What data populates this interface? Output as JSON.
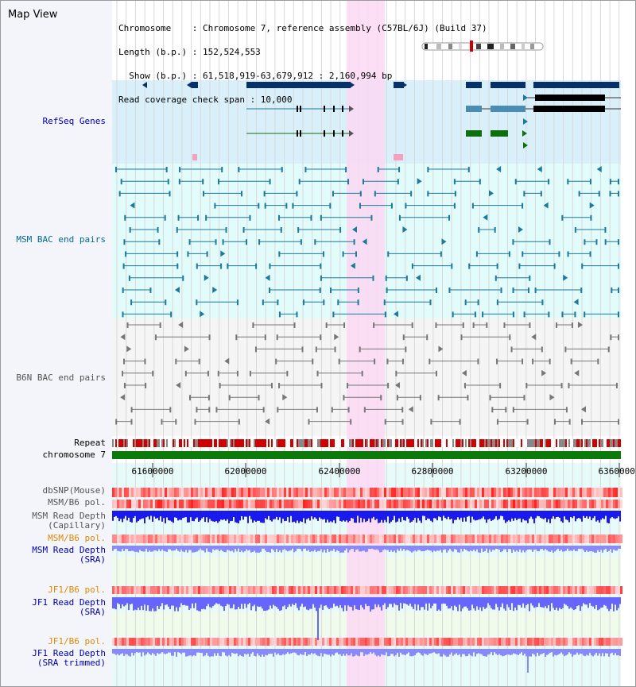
{
  "header": {
    "title": "Map View",
    "info_lines": [
      "Chromosome    : Chromosome 7, reference assembly (C57BL/6J) (Build 37)",
      "Length (b.p.) : 152,524,553",
      "  Show (b.p.) : 61,518,919-63,679,912 : 2,160,994 bp",
      "Read coverage check span : 10,000"
    ]
  },
  "tracks": {
    "refseq": "RefSeq Genes",
    "msm_bac": "MSM BAC end pairs",
    "b6n_bac": "B6N BAC end pairs",
    "repeat": "Repeat",
    "chromosome": "chromosome 7",
    "dbsnp": "dbSNP(Mouse)",
    "msm_pol": "MSM/B6 pol.",
    "msm_depth_cap_1": "MSM Read Depth",
    "msm_depth_cap_2": "(Capillary)",
    "msm_pol_sra": "MSM/B6 pol.",
    "msm_depth_sra_1": "MSM Read Depth",
    "msm_depth_sra_2": "(SRA)",
    "jf1_pol": "JF1/B6 pol.",
    "jf1_depth_1": "JF1 Read Depth",
    "jf1_depth_2": "(SRA)",
    "jf1_pol_trim": "JF1/B6 pol.",
    "jf1_trim_1": "JF1 Read Depth",
    "jf1_trim_2": "(SRA trimmed)"
  },
  "axis": {
    "ticks": [
      "61600000",
      "62000000",
      "62400000",
      "62800000",
      "63200000",
      "63600000"
    ]
  },
  "colors": {
    "refseq_bg": "#d9f0fb",
    "msm_bg": "#e2fbfb",
    "b6n_bg": "#f5f5f5",
    "highlight": "#fbd8f3",
    "gene_dark": "#06316b",
    "gene_mid": "#4a8db4",
    "gene_green": "#0d700d",
    "msm_feature": "#1d7a9c",
    "b6n_feature": "#777777",
    "chromosome": "#0b7a0b",
    "depth_blue": "#1a1aee",
    "depth_light": "#8888ff",
    "label_blue": "#0000aa",
    "label_teal": "#006b8f",
    "label_gray": "#555555",
    "label_orange": "#e08a00"
  }
}
